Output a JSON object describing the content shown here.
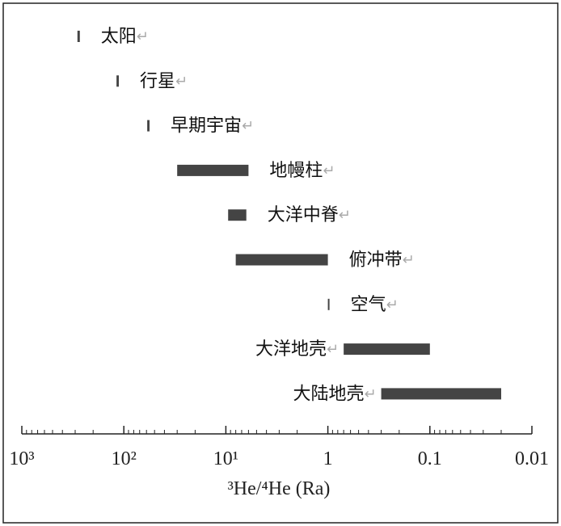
{
  "chart_data": {
    "type": "range_bar",
    "categories": [
      "太阳",
      "行星",
      "早期宇宙",
      "地幔柱",
      "大洋中脊",
      "俯冲带",
      "空气",
      "大洋地壳",
      "大陆地壳"
    ],
    "label_suffix": "↵",
    "ranges": [
      [
        285,
        270
      ],
      [
        118,
        112
      ],
      [
        59,
        56
      ],
      [
        30,
        6
      ],
      [
        9.5,
        6.3
      ],
      [
        8,
        1
      ],
      [
        1,
        1
      ],
      [
        0.7,
        0.1
      ],
      [
        0.3,
        0.02
      ]
    ],
    "color": "#444444",
    "xlabel": "³He/⁴He (Ra)",
    "log_scale": true,
    "xlim": [
      1000,
      0.01
    ],
    "xticks": [
      {
        "value": 1000,
        "label": "10³"
      },
      {
        "value": 100,
        "label": "10²"
      },
      {
        "value": 10,
        "label": "10¹"
      },
      1,
      0.1,
      0.01
    ]
  }
}
